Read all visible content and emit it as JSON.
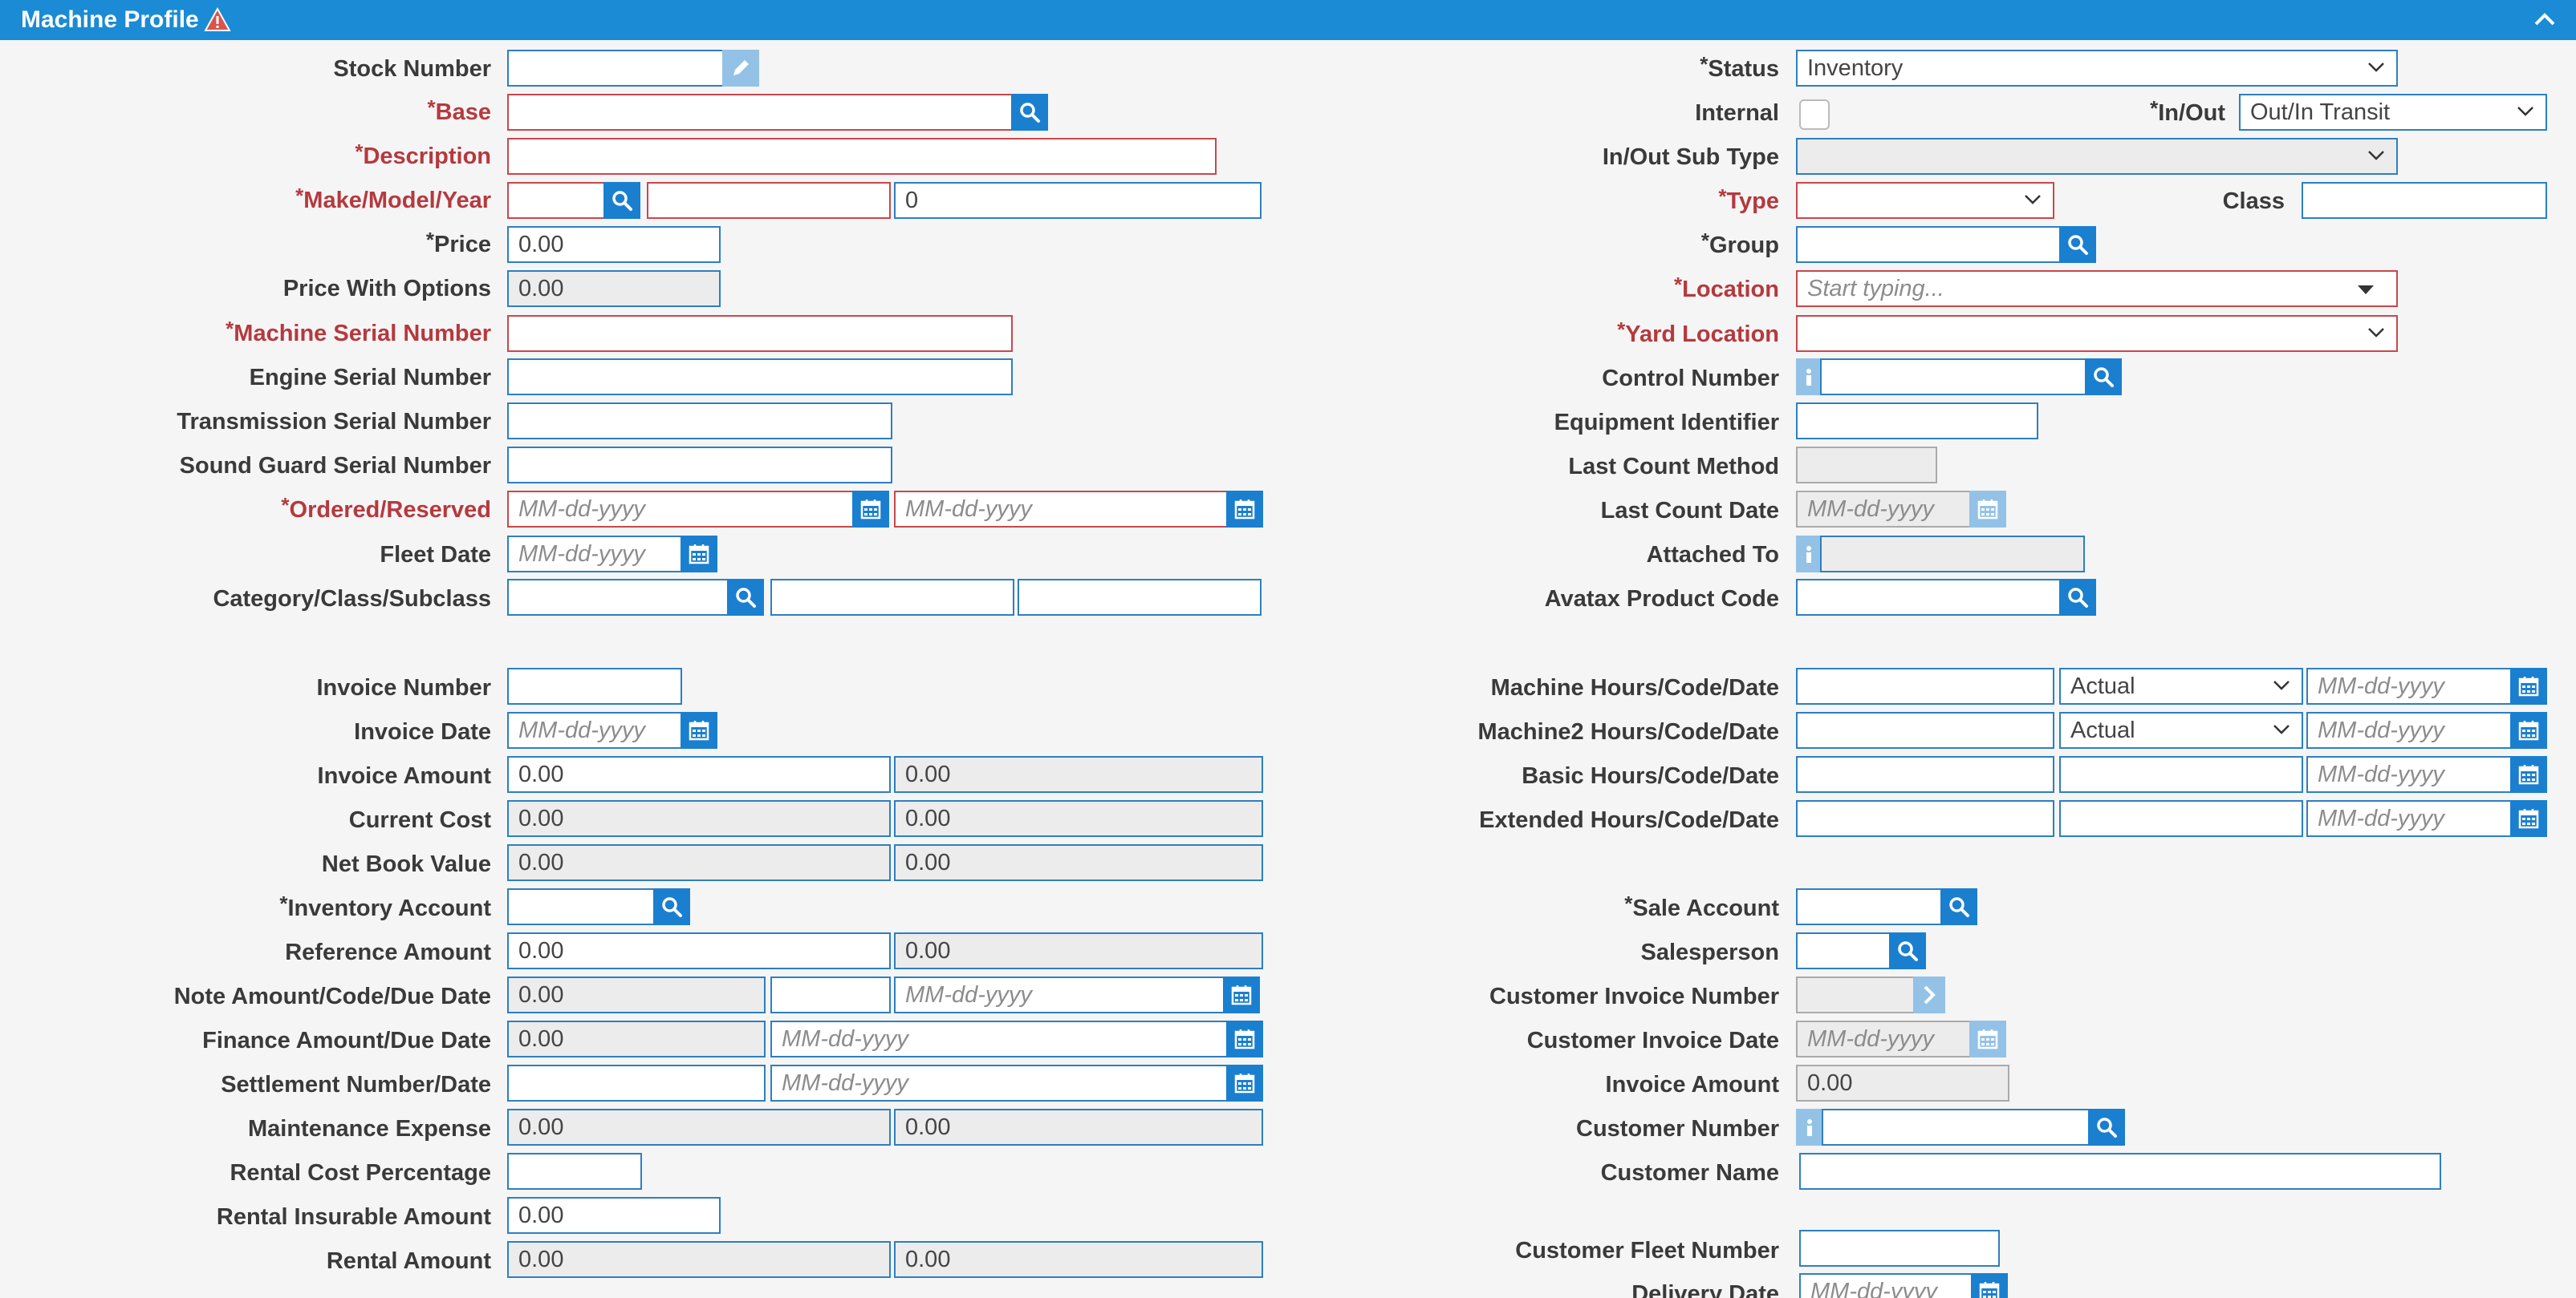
{
  "header": {
    "title": "Machine Profile"
  },
  "left": {
    "stock_number": "Stock Number",
    "base": "Base",
    "description": "Description",
    "make_model_year": "Make/Model/Year",
    "year_value": "0",
    "price": "Price",
    "price_value": "0.00",
    "price_with_options": "Price With Options",
    "price_with_options_value": "0.00",
    "machine_serial": "Machine Serial Number",
    "engine_serial": "Engine Serial Number",
    "transmission_serial": "Transmission Serial Number",
    "sound_guard_serial": "Sound Guard Serial Number",
    "ordered_reserved": "Ordered/Reserved",
    "fleet_date": "Fleet Date",
    "category": "Category/Class/Subclass",
    "invoice_number": "Invoice Number",
    "invoice_date": "Invoice Date",
    "invoice_amount": "Invoice Amount",
    "current_cost": "Current Cost",
    "net_book_value": "Net Book Value",
    "inventory_account": "Inventory Account",
    "reference_amount": "Reference Amount",
    "note_amount": "Note Amount/Code/Due Date",
    "finance_amount": "Finance Amount/Due Date",
    "settlement": "Settlement Number/Date",
    "maintenance_expense": "Maintenance Expense",
    "rental_cost_pct": "Rental Cost Percentage",
    "rental_insurable": "Rental Insurable Amount",
    "rental_amount": "Rental Amount"
  },
  "right": {
    "status": "Status",
    "status_value": "Inventory",
    "internal": "Internal",
    "in_out": "In/Out",
    "in_out_value": "Out/In Transit",
    "in_out_sub_type": "In/Out Sub Type",
    "type": "Type",
    "class": "Class",
    "group": "Group",
    "location": "Location",
    "location_placeholder": "Start typing...",
    "yard_location": "Yard Location",
    "control_number": "Control Number",
    "equipment_identifier": "Equipment Identifier",
    "last_count_method": "Last Count Method",
    "last_count_date": "Last Count Date",
    "attached_to": "Attached To",
    "avatax": "Avatax Product Code",
    "machine_hours": "Machine Hours/Code/Date",
    "machine2_hours": "Machine2 Hours/Code/Date",
    "basic_hours": "Basic Hours/Code/Date",
    "extended_hours": "Extended Hours/Code/Date",
    "actual": "Actual",
    "sale_account": "Sale Account",
    "salesperson": "Salesperson",
    "customer_invoice_number": "Customer Invoice Number",
    "customer_invoice_date": "Customer Invoice Date",
    "invoice_amount": "Invoice Amount",
    "customer_number": "Customer Number",
    "customer_name": "Customer Name",
    "customer_fleet_number": "Customer Fleet Number",
    "delivery_date": "Delivery Date"
  },
  "common": {
    "zero": "0.00",
    "date_placeholder": "MM-dd-yyyy",
    "asterisk": "*"
  }
}
